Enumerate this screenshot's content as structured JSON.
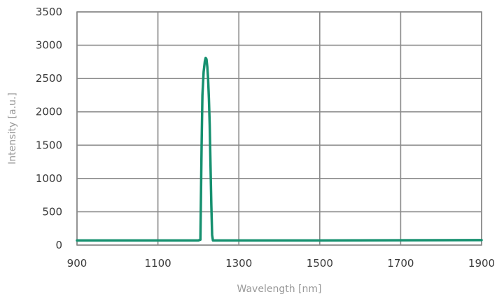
{
  "chart_data": {
    "type": "line",
    "title": "",
    "xlabel": "Wavelength [nm]",
    "ylabel": "Intensity [a.u.]",
    "xlim": [
      900,
      1900
    ],
    "ylim": [
      0,
      3500
    ],
    "xticks": [
      900,
      1100,
      1300,
      1500,
      1700,
      1900
    ],
    "yticks": [
      0,
      500,
      1000,
      1500,
      2000,
      2500,
      3000,
      3500
    ],
    "grid": true,
    "legend": "none",
    "series": [
      {
        "color": "#16906f",
        "x": [
          900,
          1000,
          1100,
          1200,
          1205,
          1208,
          1210,
          1213,
          1216,
          1218,
          1220,
          1222,
          1224,
          1226,
          1228,
          1230,
          1232,
          1234,
          1236,
          1240,
          1300,
          1500,
          1700,
          1900
        ],
        "y": [
          70,
          70,
          70,
          70,
          80,
          1500,
          2250,
          2600,
          2760,
          2810,
          2790,
          2680,
          2500,
          2200,
          1800,
          1200,
          600,
          150,
          70,
          70,
          70,
          70,
          72,
          75
        ]
      }
    ]
  }
}
